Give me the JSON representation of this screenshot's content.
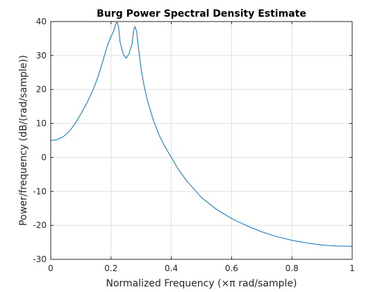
{
  "chart_data": {
    "type": "line",
    "title": "Burg Power Spectral Density Estimate",
    "xlabel": "Normalized Frequency  (×π rad/sample)",
    "ylabel": "Power/frequency (dB/(rad/sample))",
    "xlim": [
      0,
      1
    ],
    "ylim": [
      -30,
      40
    ],
    "xticks": [
      "0",
      "0.2",
      "0.4",
      "0.6",
      "0.8",
      "1"
    ],
    "xtick_values": [
      0,
      0.2,
      0.4,
      0.6,
      0.8,
      1
    ],
    "yticks": [
      "-30",
      "-20",
      "-10",
      "0",
      "10",
      "20",
      "30",
      "40"
    ],
    "ytick_values": [
      -30,
      -20,
      -10,
      0,
      10,
      20,
      30,
      40
    ],
    "grid": true,
    "series_color": "#0072bd",
    "series": [
      {
        "x": [
          0,
          0.02,
          0.04,
          0.06,
          0.08,
          0.1,
          0.12,
          0.14,
          0.16,
          0.18,
          0.19,
          0.2,
          0.21,
          0.215,
          0.22,
          0.225,
          0.23,
          0.24,
          0.25,
          0.26,
          0.27,
          0.275,
          0.28,
          0.285,
          0.29,
          0.3,
          0.31,
          0.32,
          0.34,
          0.36,
          0.38,
          0.4,
          0.42,
          0.45,
          0.5,
          0.55,
          0.6,
          0.65,
          0.7,
          0.75,
          0.8,
          0.85,
          0.9,
          0.95,
          1.0
        ],
        "y": [
          5.0,
          5.2,
          6.0,
          7.5,
          9.8,
          12.8,
          16.0,
          19.8,
          24.5,
          30.5,
          33.5,
          35.5,
          37.5,
          39.2,
          39.8,
          38.5,
          34.0,
          30.5,
          29.2,
          30.5,
          33.5,
          37.5,
          38.5,
          37.0,
          33.0,
          26.0,
          21.0,
          17.0,
          11.0,
          6.5,
          3.0,
          0.0,
          -3.0,
          -6.8,
          -11.8,
          -15.3,
          -18.0,
          -20.1,
          -21.9,
          -23.3,
          -24.4,
          -25.2,
          -25.8,
          -26.1,
          -26.2
        ]
      }
    ]
  }
}
